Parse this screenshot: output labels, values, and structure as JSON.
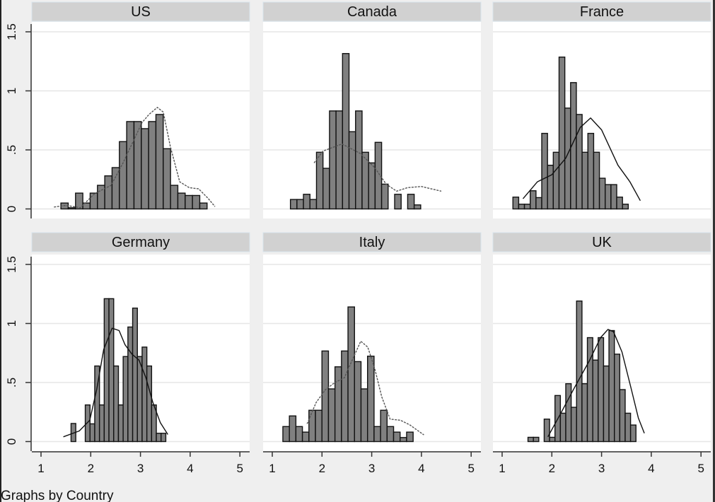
{
  "note": "Graphs by Country",
  "y_tick_labels": [
    "0",
    ".5",
    "1",
    "1.5"
  ],
  "y_tick_values": [
    0,
    0.5,
    1,
    1.5
  ],
  "x_tick_labels": [
    "1",
    "2",
    "3",
    "4",
    "5"
  ],
  "x_tick_values": [
    1,
    2,
    3,
    4,
    5
  ],
  "colors": {
    "bar_fill": "#808080",
    "bar_stroke": "#111111",
    "header": "#d1d1d1",
    "grid": "#e6e6e6",
    "background": "#efefef"
  },
  "chart_data": [
    {
      "type": "bar",
      "title": "US",
      "xlim": [
        1,
        5
      ],
      "ylim": [
        0,
        1.5
      ],
      "bin_start": 1.4,
      "bin_width": 0.147,
      "values": [
        0.05,
        0.01,
        0.134,
        0.05,
        0.134,
        0.2,
        0.28,
        0.35,
        0.57,
        0.74,
        0.74,
        0.68,
        0.74,
        0.8,
        0.51,
        0.2,
        0.134,
        0.114,
        0.114,
        0.05
      ],
      "kde_style": "dashed",
      "kde": {
        "x": [
          1.26,
          1.5,
          1.79,
          2.08,
          2.41,
          2.65,
          3.03,
          3.17,
          3.34,
          3.46,
          3.6,
          3.79,
          3.98,
          4.17,
          4.36,
          4.5
        ],
        "y": [
          0.016,
          0.03,
          0.01,
          0.13,
          0.2,
          0.39,
          0.73,
          0.8,
          0.86,
          0.82,
          0.53,
          0.23,
          0.18,
          0.17,
          0.09,
          0.02
        ]
      }
    },
    {
      "type": "bar",
      "title": "Canada",
      "xlim": [
        1,
        5
      ],
      "ylim": [
        0,
        1.5
      ],
      "bin_start": 1.365,
      "bin_width": 0.131,
      "values": [
        0.08,
        0.08,
        0.124,
        0.08,
        0.48,
        0.344,
        0.83,
        0.83,
        1.316,
        0.654,
        0.83,
        0.48,
        0.39,
        0.564,
        0.21,
        0,
        0.124,
        0,
        0.124,
        0.034
      ],
      "kde_style": "dashed",
      "kde": {
        "x": [
          1.84,
          2.02,
          2.4,
          2.77,
          3.06,
          3.29,
          3.5,
          3.72,
          4.0,
          4.4
        ],
        "y": [
          0.39,
          0.49,
          0.55,
          0.47,
          0.35,
          0.21,
          0.15,
          0.18,
          0.19,
          0.15
        ]
      }
    },
    {
      "type": "bar",
      "title": "France",
      "xlim": [
        1,
        5
      ],
      "ylim": [
        0,
        1.5
      ],
      "bin_start": 1.217,
      "bin_width": 0.116,
      "values": [
        0.1,
        0.04,
        0.04,
        0.154,
        0.096,
        0.64,
        0.37,
        0.48,
        1.286,
        0.854,
        1.07,
        0.8,
        0.48,
        0.64,
        0.48,
        0.26,
        0.206,
        0.206,
        0.1,
        0.04
      ],
      "kde_style": "solid",
      "kde": {
        "x": [
          1.42,
          1.71,
          2.0,
          2.28,
          2.57,
          2.78,
          3.0,
          3.33,
          3.57,
          3.78
        ],
        "y": [
          0.086,
          0.23,
          0.29,
          0.43,
          0.69,
          0.77,
          0.67,
          0.37,
          0.23,
          0.07
        ]
      }
    },
    {
      "type": "bar",
      "title": "Germany",
      "xlim": [
        1,
        5
      ],
      "ylim": [
        0,
        1.5
      ],
      "bin_start": 1.604,
      "bin_width": 0.0953,
      "values": [
        0.153,
        0,
        0,
        0.31,
        0.15,
        0.64,
        0.31,
        1.21,
        1.21,
        0.64,
        0.31,
        0.72,
        0.97,
        1.13,
        0.72,
        0.8,
        0.64,
        0.31,
        0.07,
        0.07
      ],
      "kde_style": "solid",
      "kde": {
        "x": [
          1.45,
          1.77,
          1.98,
          2.12,
          2.26,
          2.43,
          2.57,
          2.69,
          2.83,
          2.97,
          3.11,
          3.25,
          3.4,
          3.55
        ],
        "y": [
          0.04,
          0.09,
          0.18,
          0.44,
          0.78,
          0.96,
          0.94,
          0.82,
          0.74,
          0.69,
          0.54,
          0.33,
          0.16,
          0.06
        ]
      }
    },
    {
      "type": "bar",
      "title": "Italy",
      "xlim": [
        1,
        5
      ],
      "ylim": [
        0,
        1.5
      ],
      "bin_start": 1.213,
      "bin_width": 0.131,
      "values": [
        0.127,
        0.217,
        0.127,
        0.08,
        0.265,
        0.265,
        0.767,
        0.446,
        0.633,
        0.767,
        1.14,
        0.677,
        0.446,
        0.723,
        0.127,
        0.265,
        0.127,
        0.08,
        0.034,
        0.08
      ],
      "kde_style": "dashed",
      "kde": {
        "x": [
          1.7,
          1.88,
          2.07,
          2.26,
          2.45,
          2.64,
          2.78,
          2.92,
          3.06,
          3.2,
          3.37,
          3.58,
          3.77,
          4.05
        ],
        "y": [
          0.15,
          0.33,
          0.44,
          0.5,
          0.54,
          0.72,
          0.85,
          0.8,
          0.62,
          0.38,
          0.19,
          0.18,
          0.14,
          0.056
        ]
      }
    },
    {
      "type": "bar",
      "title": "UK",
      "xlim": [
        1,
        5
      ],
      "ylim": [
        0,
        1.5
      ],
      "bin_start": 1.52,
      "bin_width": 0.1086,
      "values": [
        0.036,
        0.036,
        0,
        0.19,
        0.036,
        0.39,
        0.24,
        0.49,
        0.29,
        1.19,
        0.49,
        0.88,
        0.69,
        0.88,
        0.64,
        0.94,
        0.74,
        0.44,
        0.24,
        0.14
      ],
      "kde_style": "solid",
      "kde": {
        "x": [
          1.92,
          2.18,
          2.46,
          2.75,
          2.98,
          3.13,
          3.24,
          3.41,
          3.6,
          3.74,
          3.86
        ],
        "y": [
          0.04,
          0.24,
          0.46,
          0.68,
          0.88,
          0.95,
          0.93,
          0.76,
          0.44,
          0.2,
          0.07
        ]
      }
    }
  ]
}
